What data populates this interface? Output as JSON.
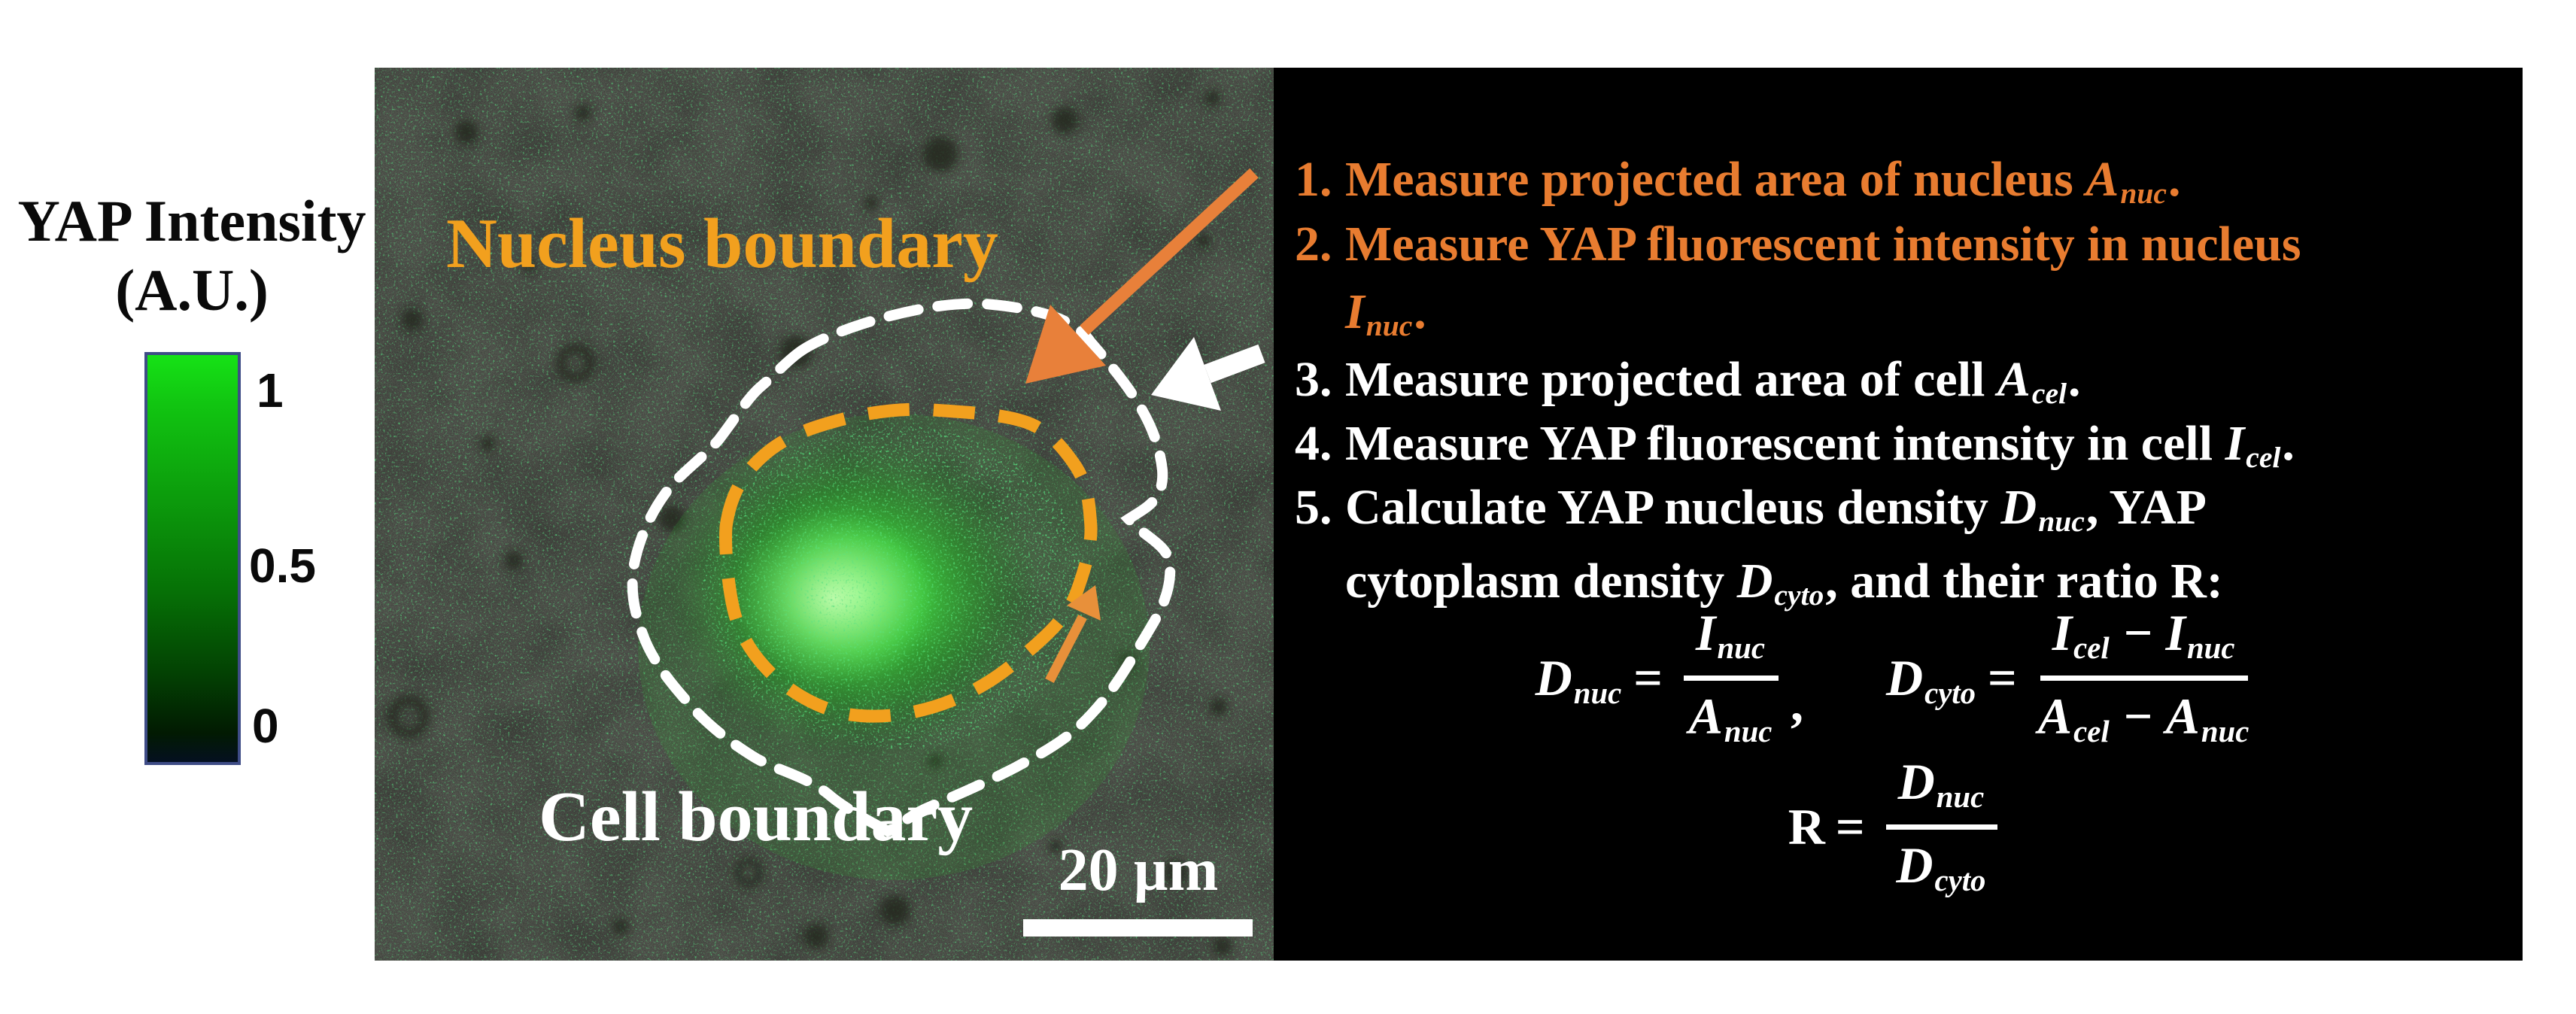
{
  "colorbar": {
    "title_line1": "YAP Intensity",
    "title_line2": "(A.U.)",
    "tick_top": "1",
    "tick_mid": "0.5",
    "tick_bottom": "0",
    "gradient_top_color": "#16e216",
    "gradient_bottom_color": "#021a02"
  },
  "micrograph": {
    "nucleus_boundary_label": "Nucleus boundary",
    "cell_boundary_label": "Cell boundary",
    "scale_bar_label": "20 µm",
    "nucleus_boundary_color": "#f2a01e",
    "cell_boundary_color": "#ffffff",
    "orange_arrow_color": "#e8803a",
    "nucleus_glow_color": "#35d435"
  },
  "procedure": {
    "steps": [
      {
        "marker": "1.",
        "color": "#e87c30",
        "lines": [
          [
            [
              "t",
              "Measure projected area of nucleus "
            ],
            [
              "v",
              "A"
            ],
            [
              "s",
              "nuc"
            ],
            [
              "t",
              "."
            ]
          ]
        ]
      },
      {
        "marker": "2.",
        "color": "#e87c30",
        "lines": [
          [
            [
              "t",
              "Measure YAP fluorescent intensity in nucleus"
            ]
          ],
          [
            [
              "v",
              "I"
            ],
            [
              "s",
              "nuc"
            ],
            [
              "t",
              "."
            ]
          ]
        ]
      },
      {
        "marker": "3.",
        "color": "#ffffff",
        "lines": [
          [
            [
              "t",
              "Measure projected area of cell "
            ],
            [
              "v",
              "A"
            ],
            [
              "s",
              "cel"
            ],
            [
              "t",
              "."
            ]
          ]
        ]
      },
      {
        "marker": "4.",
        "color": "#ffffff",
        "lines": [
          [
            [
              "t",
              "Measure YAP fluorescent intensity in cell "
            ],
            [
              "v",
              "I"
            ],
            [
              "s",
              "cel"
            ],
            [
              "t",
              "."
            ]
          ]
        ]
      },
      {
        "marker": "5.",
        "color": "#ffffff",
        "lines": [
          [
            [
              "t",
              "Calculate YAP nucleus density "
            ],
            [
              "v",
              "D"
            ],
            [
              "s",
              "nuc"
            ],
            [
              "t",
              ", YAP"
            ]
          ],
          [
            [
              "t",
              "cytoplasm density "
            ],
            [
              "v",
              "D"
            ],
            [
              "s",
              "cyto"
            ],
            [
              "t",
              ", and their ratio R:"
            ]
          ]
        ]
      }
    ],
    "formulas": {
      "dnuc": {
        "lhs": [
          [
            "v",
            "D"
          ],
          [
            "s",
            "nuc"
          ]
        ],
        "eq": "=",
        "num": [
          [
            "v",
            "I"
          ],
          [
            "s",
            "nuc"
          ]
        ],
        "den": [
          [
            "v",
            "A"
          ],
          [
            "s",
            "nuc"
          ]
        ],
        "trail": ","
      },
      "dcyto": {
        "lhs": [
          [
            "v",
            "D"
          ],
          [
            "s",
            "cyto"
          ]
        ],
        "eq": "=",
        "num": [
          [
            "v",
            "I"
          ],
          [
            "s",
            "cel"
          ],
          [
            "t",
            " − "
          ],
          [
            "v",
            "I"
          ],
          [
            "s",
            "nuc"
          ]
        ],
        "den": [
          [
            "v",
            "A"
          ],
          [
            "s",
            "cel"
          ],
          [
            "t",
            " − "
          ],
          [
            "v",
            "A"
          ],
          [
            "s",
            "nuc"
          ]
        ]
      },
      "ratio": {
        "lhs": [
          [
            "t",
            "R"
          ]
        ],
        "eq": "=",
        "num": [
          [
            "v",
            "D"
          ],
          [
            "s",
            "nuc"
          ]
        ],
        "den": [
          [
            "v",
            "D"
          ],
          [
            "s",
            "cyto"
          ]
        ]
      }
    }
  }
}
